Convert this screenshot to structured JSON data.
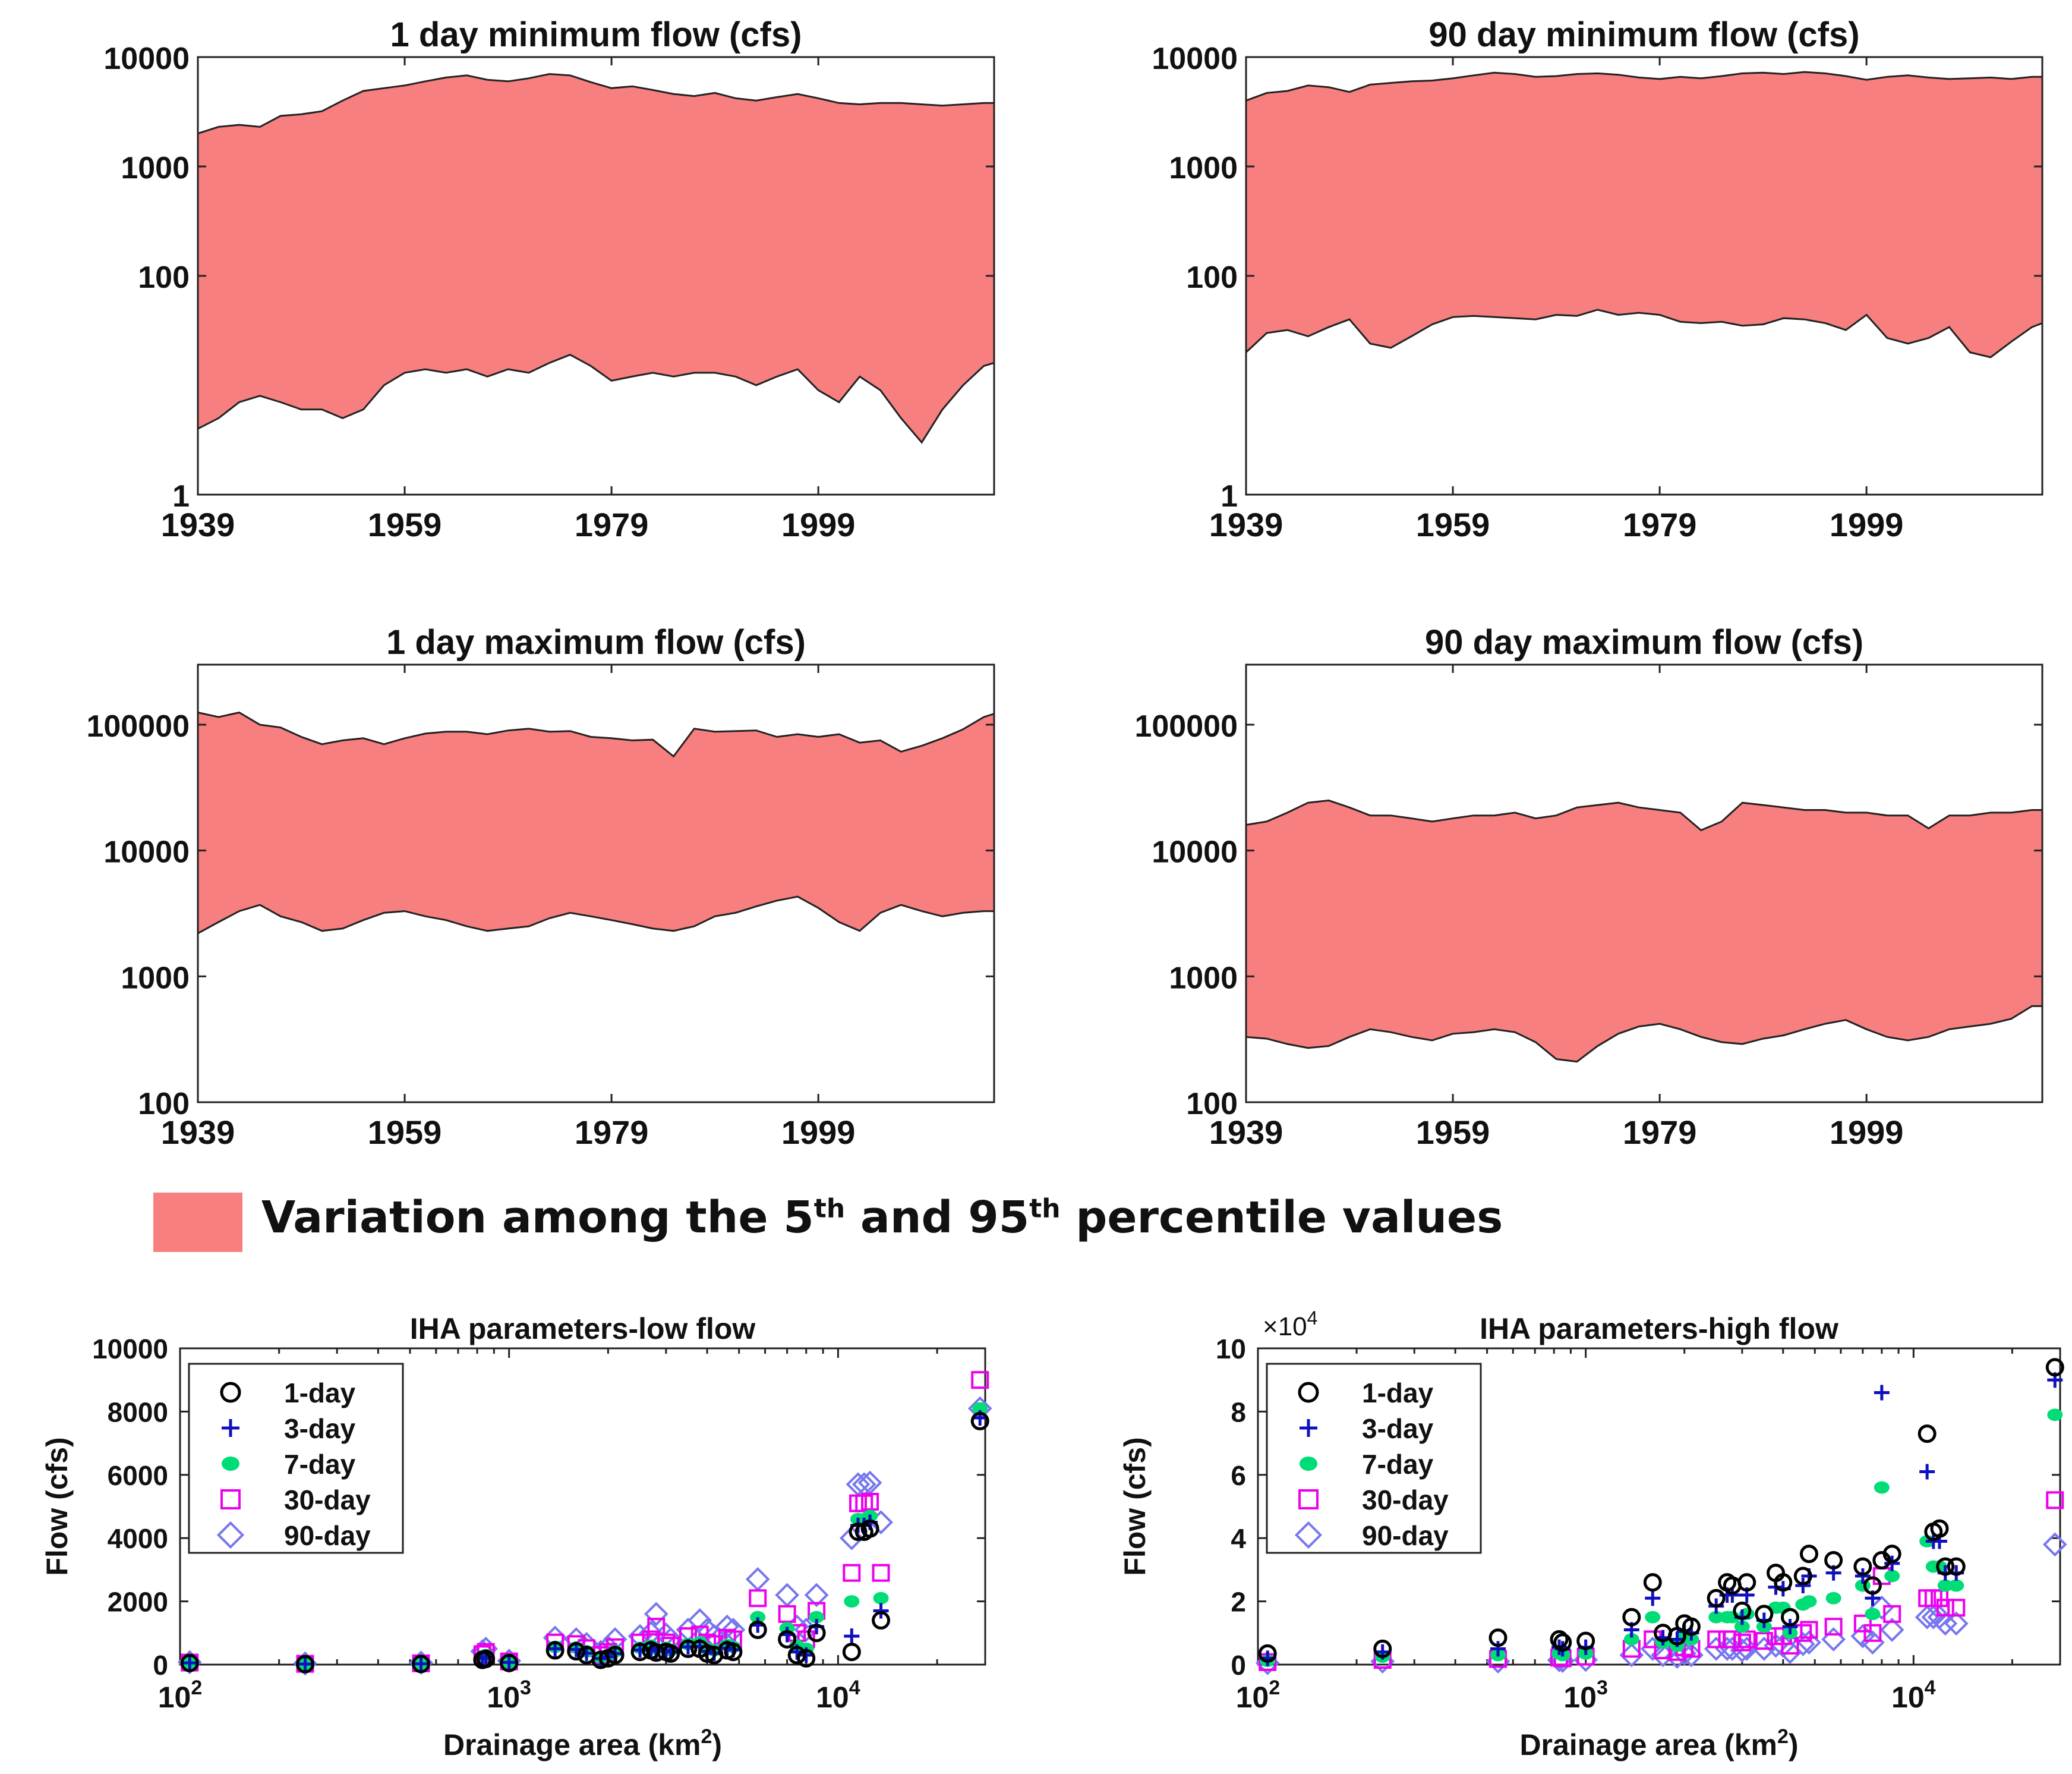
{
  "colors": {
    "band": "#f77f7f",
    "axis": "#222222"
  },
  "band_legend": {
    "label_parts": [
      "Variation among the 5",
      "th",
      " and 95",
      "th",
      " percentile values"
    ]
  },
  "chart_data": [
    {
      "id": "p1",
      "type": "area",
      "scale": "log",
      "title": "1 day minimum flow (cfs)",
      "xlim": [
        1939,
        2016
      ],
      "ylim": [
        1,
        10000
      ],
      "xticks": [
        1939,
        1959,
        1979,
        1999
      ],
      "yticks": [
        1,
        100,
        1000,
        10000
      ],
      "ytick_labels": [
        "1",
        "100",
        "1000",
        "10000"
      ],
      "x": [
        1939,
        1941,
        1943,
        1945,
        1947,
        1949,
        1951,
        1953,
        1955,
        1957,
        1959,
        1961,
        1963,
        1965,
        1967,
        1969,
        1971,
        1973,
        1975,
        1977,
        1979,
        1981,
        1983,
        1985,
        1987,
        1989,
        1991,
        1993,
        1995,
        1997,
        1999,
        2001,
        2003,
        2005,
        2007,
        2009,
        2011,
        2013,
        2015,
        2016
      ],
      "upper": [
        2000,
        2300,
        2400,
        2300,
        2900,
        3000,
        3200,
        4000,
        4900,
        5200,
        5500,
        6000,
        6500,
        6800,
        6200,
        6000,
        6400,
        7000,
        6800,
        5900,
        5200,
        5400,
        5000,
        4600,
        4400,
        4700,
        4200,
        4000,
        4300,
        4600,
        4200,
        3800,
        3700,
        3800,
        3800,
        3700,
        3600,
        3700,
        3800,
        3800
      ],
      "lower": [
        4,
        5,
        7,
        8,
        7,
        6,
        6,
        5,
        6,
        10,
        13,
        14,
        13,
        14,
        12,
        14,
        13,
        16,
        19,
        15,
        11,
        12,
        13,
        12,
        13,
        13,
        12,
        10,
        12,
        14,
        9,
        7,
        12,
        9,
        5,
        3,
        6,
        10,
        15,
        16
      ]
    },
    {
      "id": "p2",
      "type": "area",
      "scale": "log",
      "title": "90 day minimum flow (cfs)",
      "xlim": [
        1939,
        2016
      ],
      "ylim": [
        1,
        10000
      ],
      "xticks": [
        1939,
        1959,
        1979,
        1999
      ],
      "yticks": [
        1,
        100,
        1000,
        10000
      ],
      "ytick_labels": [
        "1",
        "100",
        "1000",
        "10000"
      ],
      "x": [
        1939,
        1941,
        1943,
        1945,
        1947,
        1949,
        1951,
        1953,
        1955,
        1957,
        1959,
        1961,
        1963,
        1965,
        1967,
        1969,
        1971,
        1973,
        1975,
        1977,
        1979,
        1981,
        1983,
        1985,
        1987,
        1989,
        1991,
        1993,
        1995,
        1997,
        1999,
        2001,
        2003,
        2005,
        2007,
        2009,
        2011,
        2013,
        2015,
        2016
      ],
      "upper": [
        4000,
        4700,
        4900,
        5500,
        5300,
        4800,
        5600,
        5800,
        6000,
        6100,
        6400,
        6800,
        7200,
        7000,
        6600,
        6700,
        7000,
        7100,
        6900,
        6500,
        6300,
        6600,
        6400,
        6700,
        7100,
        7200,
        7000,
        7300,
        7100,
        6700,
        6200,
        6600,
        6800,
        6500,
        6300,
        6400,
        6500,
        6300,
        6600,
        6600
      ],
      "lower": [
        20,
        30,
        32,
        28,
        34,
        40,
        24,
        22,
        28,
        36,
        42,
        43,
        42,
        41,
        40,
        44,
        43,
        49,
        44,
        46,
        44,
        38,
        37,
        38,
        35,
        36,
        41,
        40,
        37,
        32,
        44,
        27,
        24,
        27,
        34,
        20,
        18,
        25,
        34,
        37
      ]
    },
    {
      "id": "p3",
      "type": "area",
      "scale": "log",
      "title": "1 day maximum flow (cfs)",
      "xlim": [
        1939,
        2016
      ],
      "ylim": [
        100,
        300000
      ],
      "xticks": [
        1939,
        1959,
        1979,
        1999
      ],
      "yticks": [
        100,
        1000,
        10000,
        100000
      ],
      "ytick_labels": [
        "100",
        "1000",
        "10000",
        "100000"
      ],
      "x": [
        1939,
        1941,
        1943,
        1945,
        1947,
        1949,
        1951,
        1953,
        1955,
        1957,
        1959,
        1961,
        1963,
        1965,
        1967,
        1969,
        1971,
        1973,
        1975,
        1977,
        1979,
        1981,
        1983,
        1985,
        1987,
        1989,
        1991,
        1993,
        1995,
        1997,
        1999,
        2001,
        2003,
        2005,
        2007,
        2009,
        2011,
        2013,
        2015,
        2016
      ],
      "upper": [
        125000,
        115000,
        125000,
        100000,
        95000,
        80000,
        70000,
        75000,
        78000,
        70000,
        78000,
        85000,
        88000,
        88000,
        84000,
        90000,
        93000,
        88000,
        89000,
        80000,
        78000,
        75000,
        76000,
        56000,
        93000,
        88000,
        89000,
        90000,
        80000,
        84000,
        80000,
        84000,
        72000,
        75000,
        61000,
        68000,
        78000,
        92000,
        115000,
        122000
      ],
      "lower": [
        2200,
        2700,
        3300,
        3700,
        3000,
        2700,
        2300,
        2400,
        2800,
        3200,
        3300,
        3000,
        2800,
        2500,
        2300,
        2400,
        2500,
        2900,
        3200,
        3000,
        2800,
        2600,
        2400,
        2300,
        2500,
        3000,
        3200,
        3600,
        4000,
        4300,
        3500,
        2700,
        2300,
        3200,
        3700,
        3300,
        3000,
        3200,
        3300,
        3300
      ]
    },
    {
      "id": "p4",
      "type": "area",
      "scale": "log",
      "title": "90 day maximum flow (cfs)",
      "xlim": [
        1939,
        2016
      ],
      "ylim": [
        100,
        300000
      ],
      "xticks": [
        1939,
        1959,
        1979,
        1999
      ],
      "yticks": [
        100,
        1000,
        10000,
        100000
      ],
      "ytick_labels": [
        "100",
        "1000",
        "10000",
        "100000"
      ],
      "x": [
        1939,
        1941,
        1943,
        1945,
        1947,
        1949,
        1951,
        1953,
        1955,
        1957,
        1959,
        1961,
        1963,
        1965,
        1967,
        1969,
        1971,
        1973,
        1975,
        1977,
        1979,
        1981,
        1983,
        1985,
        1987,
        1989,
        1991,
        1993,
        1995,
        1997,
        1999,
        2001,
        2003,
        2005,
        2007,
        2009,
        2011,
        2013,
        2015,
        2016
      ],
      "upper": [
        16000,
        17000,
        20000,
        24000,
        25000,
        22000,
        19000,
        19000,
        18000,
        17000,
        18000,
        19000,
        19000,
        20000,
        18000,
        19000,
        22000,
        23000,
        24000,
        22000,
        21000,
        20000,
        14500,
        17000,
        24000,
        23000,
        22000,
        21000,
        21000,
        20000,
        20000,
        19000,
        19000,
        15000,
        19000,
        19000,
        20000,
        20000,
        21000,
        21000
      ],
      "lower": [
        330,
        320,
        290,
        270,
        280,
        330,
        380,
        360,
        330,
        310,
        350,
        360,
        380,
        360,
        300,
        220,
        210,
        280,
        350,
        400,
        420,
        380,
        330,
        300,
        290,
        320,
        340,
        380,
        420,
        450,
        380,
        330,
        310,
        330,
        380,
        400,
        420,
        460,
        580,
        580
      ]
    },
    {
      "id": "p5",
      "type": "scatter",
      "scale": "semilogx",
      "title": "IHA parameters-low flow",
      "xlabel": "Drainage area (km²)",
      "ylabel": "Flow (cfs)",
      "xlim": [
        100,
        28000
      ],
      "ylim": [
        0,
        10000
      ],
      "yticks": [
        0,
        2000,
        4000,
        6000,
        8000,
        10000
      ],
      "ytick_labels": [
        "0",
        "2000",
        "4000",
        "6000",
        "8000",
        "10000"
      ],
      "xticks": [
        100,
        1000,
        10000
      ],
      "xtick_base": "10",
      "xtick_exps": [
        "2",
        "3",
        "4"
      ],
      "legend_loc": "upper-left",
      "drainage_area": [
        107,
        240,
        540,
        830,
        850,
        1000,
        1380,
        1600,
        1720,
        1900,
        2000,
        2100,
        2500,
        2700,
        2800,
        3000,
        3100,
        3500,
        3800,
        4000,
        4200,
        4600,
        4800,
        5700,
        7000,
        7500,
        8000,
        8600,
        11000,
        11500,
        12000,
        12500,
        13500,
        27000
      ],
      "series": [
        {
          "name": "1-day",
          "marker": "circle",
          "color": "#000000",
          "values": [
            50,
            15,
            20,
            150,
            180,
            50,
            450,
            420,
            300,
            150,
            200,
            300,
            400,
            450,
            380,
            400,
            350,
            500,
            500,
            350,
            300,
            450,
            400,
            1100,
            800,
            300,
            200,
            1000,
            400,
            4200,
            4200,
            4300,
            1400,
            7700
          ]
        },
        {
          "name": "3-day",
          "marker": "plus",
          "color": "#1010c0",
          "values": [
            55,
            18,
            25,
            200,
            230,
            70,
            500,
            480,
            360,
            190,
            250,
            350,
            460,
            510,
            430,
            450,
            400,
            560,
            570,
            420,
            360,
            520,
            470,
            1250,
            950,
            400,
            300,
            1200,
            900,
            4400,
            4400,
            4500,
            1700,
            7800
          ]
        },
        {
          "name": "7-day",
          "marker": "dot",
          "color": "#00dd77",
          "values": [
            60,
            22,
            30,
            260,
            300,
            80,
            560,
            540,
            420,
            230,
            300,
            420,
            530,
            600,
            500,
            530,
            460,
            650,
            700,
            500,
            450,
            620,
            560,
            1500,
            1150,
            600,
            500,
            1500,
            2000,
            4600,
            4600,
            4700,
            2100,
            8100
          ]
        },
        {
          "name": "30-day",
          "marker": "square",
          "color": "#ee00ee",
          "values": [
            65,
            25,
            40,
            330,
            400,
            100,
            700,
            650,
            520,
            300,
            400,
            550,
            700,
            800,
            1200,
            700,
            600,
            900,
            950,
            700,
            650,
            850,
            800,
            2100,
            1600,
            1000,
            800,
            1700,
            2900,
            5100,
            5100,
            5150,
            2900,
            9000
          ]
        },
        {
          "name": "90-day",
          "marker": "diamond",
          "color": "#7777ee",
          "values": [
            75,
            35,
            60,
            420,
            500,
            120,
            850,
            800,
            650,
            400,
            550,
            800,
            900,
            1000,
            1600,
            950,
            800,
            1100,
            1400,
            1100,
            900,
            1200,
            1100,
            2700,
            2200,
            1200,
            1100,
            2200,
            4000,
            5700,
            5700,
            5750,
            4500,
            8100
          ]
        }
      ]
    },
    {
      "id": "p6",
      "type": "scatter",
      "scale": "semilogx",
      "title": "IHA parameters-high flow",
      "xlabel": "Drainage area (km²)",
      "ylabel": "Flow (cfs)",
      "xlim": [
        100,
        28000
      ],
      "ylim": [
        0,
        10
      ],
      "y_multiplier": "× 10⁴",
      "multiplier_base": "×10",
      "multiplier_exp": "4",
      "yticks": [
        0,
        2,
        4,
        6,
        8,
        10
      ],
      "ytick_labels": [
        "0",
        "2",
        "4",
        "6",
        "8",
        "10"
      ],
      "xticks": [
        100,
        1000,
        10000
      ],
      "xtick_base": "10",
      "xtick_exps": [
        "2",
        "3",
        "4"
      ],
      "legend_loc": "upper-left",
      "drainage_area": [
        107,
        240,
        540,
        830,
        850,
        1000,
        1380,
        1600,
        1720,
        1900,
        2000,
        2100,
        2500,
        2700,
        2800,
        3000,
        3100,
        3500,
        3800,
        4000,
        4200,
        4600,
        4800,
        5700,
        7000,
        7500,
        8000,
        8600,
        11000,
        11500,
        12000,
        12500,
        13500,
        27000
      ],
      "series": [
        {
          "name": "1-day",
          "marker": "circle",
          "color": "#000000",
          "values": [
            0.35,
            0.5,
            0.85,
            0.8,
            0.7,
            0.75,
            1.5,
            2.6,
            1.0,
            0.9,
            1.3,
            1.2,
            2.1,
            2.6,
            2.5,
            1.7,
            2.6,
            1.6,
            2.9,
            2.6,
            1.5,
            2.8,
            3.5,
            3.3,
            3.1,
            2.5,
            3.3,
            3.5,
            7.3,
            4.2,
            4.3,
            3.1,
            3.1,
            9.4
          ]
        },
        {
          "name": "3-day",
          "marker": "plus",
          "color": "#1010c0",
          "values": [
            0.2,
            0.4,
            0.5,
            0.55,
            0.5,
            0.55,
            1.1,
            2.1,
            0.85,
            0.8,
            1.05,
            1.0,
            1.85,
            2.2,
            2.2,
            1.5,
            2.2,
            1.4,
            2.45,
            2.4,
            1.2,
            2.5,
            2.8,
            2.9,
            2.8,
            2.1,
            8.6,
            3.2,
            6.1,
            3.9,
            3.9,
            2.9,
            2.9,
            9.0
          ]
        },
        {
          "name": "7-day",
          "marker": "dot",
          "color": "#00dd77",
          "values": [
            0.12,
            0.25,
            0.3,
            0.35,
            0.3,
            0.35,
            0.8,
            1.5,
            0.7,
            0.6,
            0.9,
            0.8,
            1.5,
            1.5,
            1.5,
            1.2,
            1.6,
            1.2,
            1.8,
            1.8,
            1.0,
            1.9,
            2.0,
            2.1,
            2.5,
            1.6,
            5.6,
            2.8,
            3.9,
            3.1,
            3.1,
            2.5,
            2.5,
            7.9
          ]
        },
        {
          "name": "30-day",
          "marker": "square",
          "color": "#ee00ee",
          "values": [
            0.08,
            0.15,
            0.18,
            0.22,
            0.2,
            0.25,
            0.5,
            0.8,
            0.45,
            0.4,
            0.55,
            0.5,
            0.8,
            0.8,
            0.8,
            0.7,
            0.8,
            0.75,
            0.9,
            0.9,
            0.6,
            1.0,
            1.1,
            1.2,
            1.3,
            1.0,
            2.8,
            1.6,
            2.1,
            2.1,
            2.1,
            1.8,
            1.8,
            5.2
          ]
        },
        {
          "name": "90-day",
          "marker": "diamond",
          "color": "#7777ee",
          "values": [
            0.05,
            0.1,
            0.1,
            0.14,
            0.12,
            0.15,
            0.3,
            0.5,
            0.3,
            0.25,
            0.35,
            0.3,
            0.5,
            0.5,
            0.5,
            0.45,
            0.5,
            0.5,
            0.6,
            0.6,
            0.4,
            0.65,
            0.7,
            0.8,
            0.9,
            0.7,
            1.8,
            1.1,
            1.5,
            1.5,
            1.5,
            1.3,
            1.3,
            3.8
          ]
        }
      ]
    }
  ]
}
